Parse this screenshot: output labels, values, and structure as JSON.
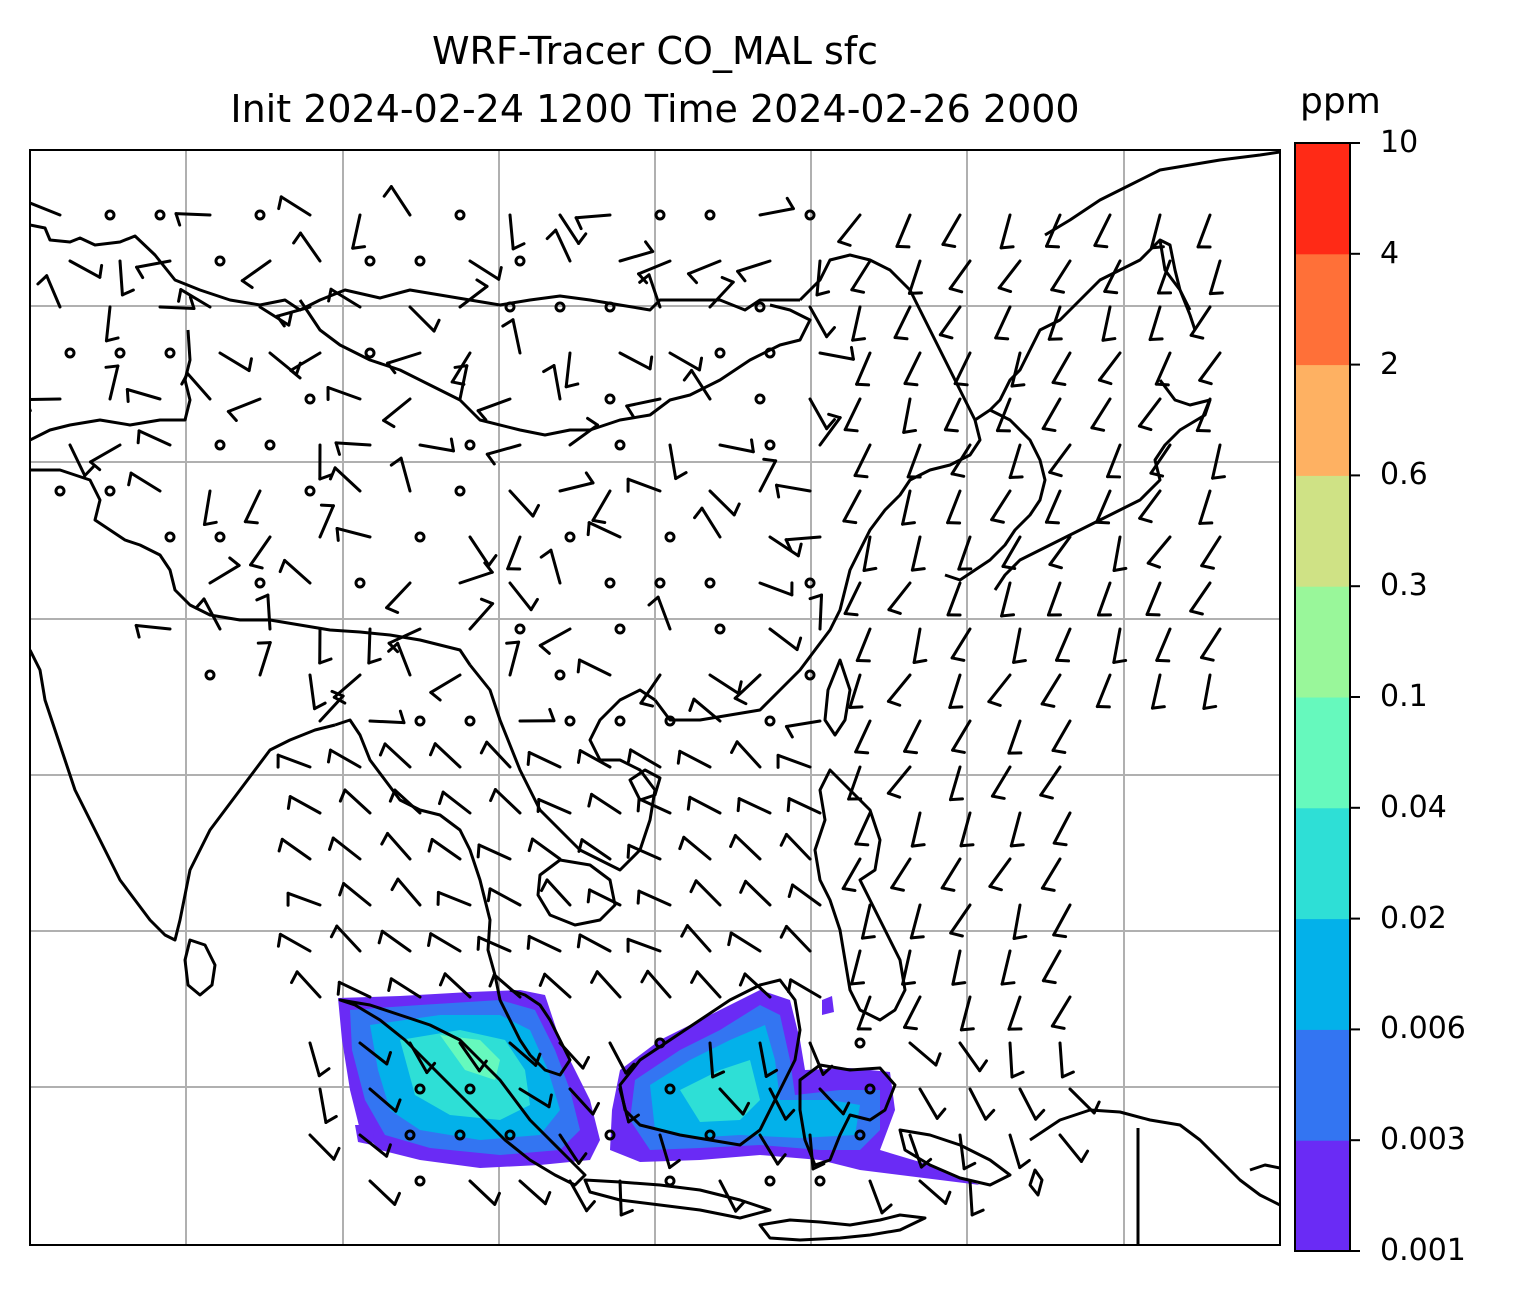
{
  "title": {
    "line1": "WRF-Tracer CO_MAL sfc",
    "line2": "Init 2024-02-24 1200 Time 2024-02-26 2000"
  },
  "colorbar": {
    "unit": "ppm",
    "levels": [
      "0.001",
      "0.003",
      "0.006",
      "0.02",
      "0.04",
      "0.1",
      "0.3",
      "0.6",
      "2",
      "4",
      "10"
    ],
    "colors": [
      "#6a2bf5",
      "#3375f2",
      "#03b1ea",
      "#2edfd6",
      "#66f9bd",
      "#99f79a",
      "#cfe285",
      "#feb162",
      "#ff7038",
      "#ff2a16"
    ]
  },
  "map": {
    "region": "South and East Asia",
    "gridlines": true,
    "overlays": [
      "coastlines",
      "wind-barbs",
      "calm-circles",
      "tracer-concentration-fill"
    ]
  },
  "colors": {
    "gridline": "#b0b0b0",
    "coastline": "#000000",
    "frame": "#000000"
  }
}
